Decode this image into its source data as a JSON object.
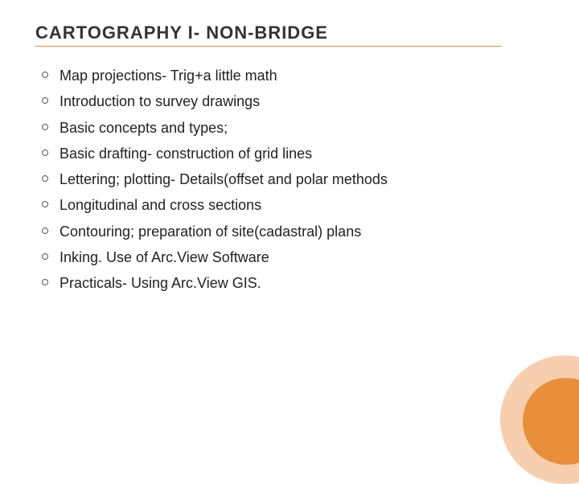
{
  "slide": {
    "title": "CARTOGRAPHY I- NON-BRIDGE",
    "title_fontsize": 22,
    "title_color": "#333333",
    "underline_color": "#e98f3a",
    "underline_width": 580,
    "bullets": [
      "Map projections- Trig+a little math",
      "Introduction to survey drawings",
      "Basic concepts and types;",
      "Basic drafting- construction of grid lines",
      "Lettering; plotting- Details(offset and polar methods",
      "Longitudinal and cross sections",
      "Contouring; preparation of site(cadastral) plans",
      "Inking. Use of Arc.View Software",
      "Practicals- Using Arc.View GIS."
    ],
    "bullet_fontsize": 18,
    "bullet_color": "#222222",
    "bullet_marker_border": "#555555",
    "background_color": "#ffffff",
    "decor": {
      "outer_circle_color": "#f7cfae",
      "outer_circle_size": 160,
      "inner_circle_color": "#e98f3a",
      "inner_circle_size": 108
    }
  }
}
